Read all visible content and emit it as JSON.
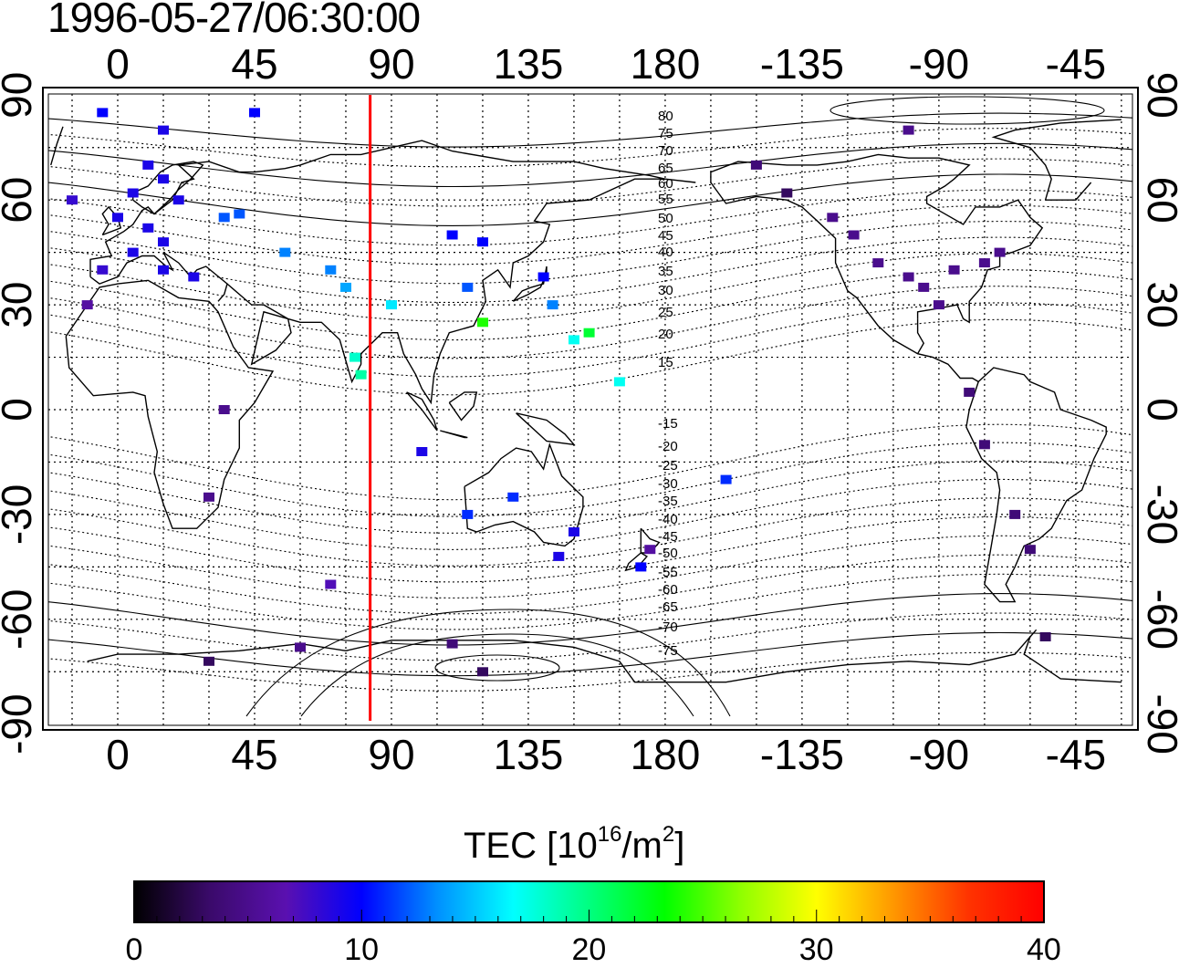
{
  "title": "1996-05-27/06:30:00",
  "map": {
    "x_ticks": [
      "0",
      "45",
      "90",
      "135",
      "180",
      "-135",
      "-90",
      "-45"
    ],
    "y_ticks": [
      "90",
      "60",
      "30",
      "0",
      "-30",
      "-60",
      "-90"
    ],
    "lon_range_east_of_greenwich": [
      -25,
      333
    ],
    "lat_range": [
      -90,
      90
    ],
    "grid": "dotted every 15 degrees",
    "meridian_marker_lon": 83,
    "meridian_marker_color": "#ff0000",
    "geomagnetic_lat_labels_north": [
      "80",
      "75",
      "70",
      "65",
      "60",
      "55",
      "50",
      "45",
      "40",
      "35",
      "30",
      "25",
      "20",
      "15"
    ],
    "geomagnetic_lat_labels_south": [
      "-15",
      "-20",
      "-25",
      "-30",
      "-35",
      "-40",
      "-45",
      "-50",
      "-55",
      "-60",
      "-65",
      "-70",
      "-75"
    ]
  },
  "colorbar": {
    "title_main": "TEC  [10",
    "title_exp": "16",
    "title_unit": "/m",
    "title_unit_exp": "2",
    "title_close": "]",
    "ticks": [
      "0",
      "10",
      "20",
      "30",
      "40"
    ],
    "range": [
      0,
      40
    ],
    "stops": [
      "#000000",
      "#3a0a6a",
      "#5a10b0",
      "#0000ff",
      "#0090ff",
      "#00ffff",
      "#00ff80",
      "#00ff00",
      "#90ff00",
      "#ffff00",
      "#ff9900",
      "#ff3300",
      "#ff0000"
    ]
  },
  "chart_data": {
    "type": "heatmap",
    "quantity": "TEC",
    "points": [
      {
        "lon": 10,
        "lat": 70,
        "tec": 9
      },
      {
        "lon": 15,
        "lat": 66,
        "tec": 9
      },
      {
        "lon": 5,
        "lat": 62,
        "tec": 9
      },
      {
        "lon": 20,
        "lat": 60,
        "tec": 9
      },
      {
        "lon": 0,
        "lat": 55,
        "tec": 9
      },
      {
        "lon": 10,
        "lat": 52,
        "tec": 9
      },
      {
        "lon": 15,
        "lat": 48,
        "tec": 9
      },
      {
        "lon": 5,
        "lat": 45,
        "tec": 9
      },
      {
        "lon": -5,
        "lat": 40,
        "tec": 8
      },
      {
        "lon": 15,
        "lat": 40,
        "tec": 9
      },
      {
        "lon": 25,
        "lat": 38,
        "tec": 9
      },
      {
        "lon": 35,
        "lat": 55,
        "tec": 12
      },
      {
        "lon": 40,
        "lat": 56,
        "tec": 12
      },
      {
        "lon": 55,
        "lat": 45,
        "tec": 13
      },
      {
        "lon": 70,
        "lat": 40,
        "tec": 13
      },
      {
        "lon": 75,
        "lat": 35,
        "tec": 14
      },
      {
        "lon": 90,
        "lat": 30,
        "tec": 16
      },
      {
        "lon": 78,
        "lat": 15,
        "tec": 18
      },
      {
        "lon": 80,
        "lat": 10,
        "tec": 19
      },
      {
        "lon": 110,
        "lat": 50,
        "tec": 10
      },
      {
        "lon": 120,
        "lat": 48,
        "tec": 10
      },
      {
        "lon": 115,
        "lat": 35,
        "tec": 12
      },
      {
        "lon": 120,
        "lat": 25,
        "tec": 24
      },
      {
        "lon": 140,
        "lat": 38,
        "tec": 10
      },
      {
        "lon": 143,
        "lat": 30,
        "tec": 13
      },
      {
        "lon": 150,
        "lat": 20,
        "tec": 17
      },
      {
        "lon": 155,
        "lat": 22,
        "tec": 22
      },
      {
        "lon": 165,
        "lat": 8,
        "tec": 17
      },
      {
        "lon": -125,
        "lat": 55,
        "tec": 5
      },
      {
        "lon": -118,
        "lat": 50,
        "tec": 5
      },
      {
        "lon": -110,
        "lat": 42,
        "tec": 5
      },
      {
        "lon": -100,
        "lat": 38,
        "tec": 5
      },
      {
        "lon": -95,
        "lat": 35,
        "tec": 5
      },
      {
        "lon": -90,
        "lat": 30,
        "tec": 5
      },
      {
        "lon": -85,
        "lat": 40,
        "tec": 5
      },
      {
        "lon": -75,
        "lat": 42,
        "tec": 5
      },
      {
        "lon": -70,
        "lat": 45,
        "tec": 5
      },
      {
        "lon": -140,
        "lat": 62,
        "tec": 3
      },
      {
        "lon": -150,
        "lat": 70,
        "tec": 4
      },
      {
        "lon": -100,
        "lat": 80,
        "tec": 5
      },
      {
        "lon": -80,
        "lat": 5,
        "tec": 4
      },
      {
        "lon": -75,
        "lat": -10,
        "tec": 4
      },
      {
        "lon": -65,
        "lat": -30,
        "tec": 4
      },
      {
        "lon": -60,
        "lat": -40,
        "tec": 4
      },
      {
        "lon": -55,
        "lat": -65,
        "tec": 3
      },
      {
        "lon": -160,
        "lat": -20,
        "tec": 11
      },
      {
        "lon": 175,
        "lat": -40,
        "tec": 6
      },
      {
        "lon": 172,
        "lat": -45,
        "tec": 10
      },
      {
        "lon": 150,
        "lat": -35,
        "tec": 9
      },
      {
        "lon": 145,
        "lat": -42,
        "tec": 9
      },
      {
        "lon": 130,
        "lat": -25,
        "tec": 11
      },
      {
        "lon": 115,
        "lat": -30,
        "tec": 11
      },
      {
        "lon": 100,
        "lat": -12,
        "tec": 9
      },
      {
        "lon": 30,
        "lat": -25,
        "tec": 5
      },
      {
        "lon": 35,
        "lat": 0,
        "tec": 5
      },
      {
        "lon": 70,
        "lat": -50,
        "tec": 7
      },
      {
        "lon": 60,
        "lat": -68,
        "tec": 5
      },
      {
        "lon": 110,
        "lat": -67,
        "tec": 4
      },
      {
        "lon": 120,
        "lat": -75,
        "tec": 3
      },
      {
        "lon": 30,
        "lat": -72,
        "tec": 3
      },
      {
        "lon": -10,
        "lat": 30,
        "tec": 6
      },
      {
        "lon": -15,
        "lat": 60,
        "tec": 8
      },
      {
        "lon": -5,
        "lat": 85,
        "tec": 10
      },
      {
        "lon": 45,
        "lat": 85,
        "tec": 10
      },
      {
        "lon": 15,
        "lat": 80,
        "tec": 9
      }
    ]
  }
}
